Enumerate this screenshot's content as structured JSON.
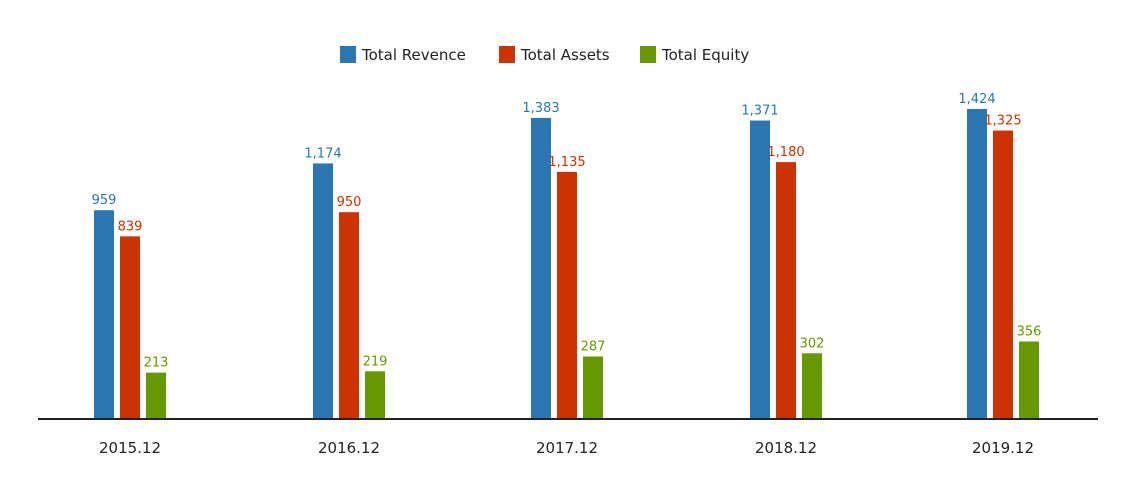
{
  "chart_data": {
    "type": "bar",
    "categories": [
      "2015.12",
      "2016.12",
      "2017.12",
      "2018.12",
      "2019.12"
    ],
    "series": [
      {
        "name": "Total Revence",
        "color": "#2a77b4",
        "values": [
          959,
          1174,
          1383,
          1371,
          1424
        ],
        "labels": [
          "959",
          "1,174",
          "1,383",
          "1,371",
          "1,424"
        ]
      },
      {
        "name": "Total Assets",
        "color": "#cc3300",
        "values": [
          839,
          950,
          1135,
          1180,
          1325
        ],
        "labels": [
          "839",
          "950",
          "1,135",
          "1,180",
          "1,325"
        ]
      },
      {
        "name": "Total Equity",
        "color": "#669900",
        "values": [
          213,
          219,
          287,
          302,
          356
        ],
        "labels": [
          "213",
          "219",
          "287",
          "302",
          "356"
        ]
      }
    ],
    "legend_position": "top-center",
    "grid": false
  }
}
